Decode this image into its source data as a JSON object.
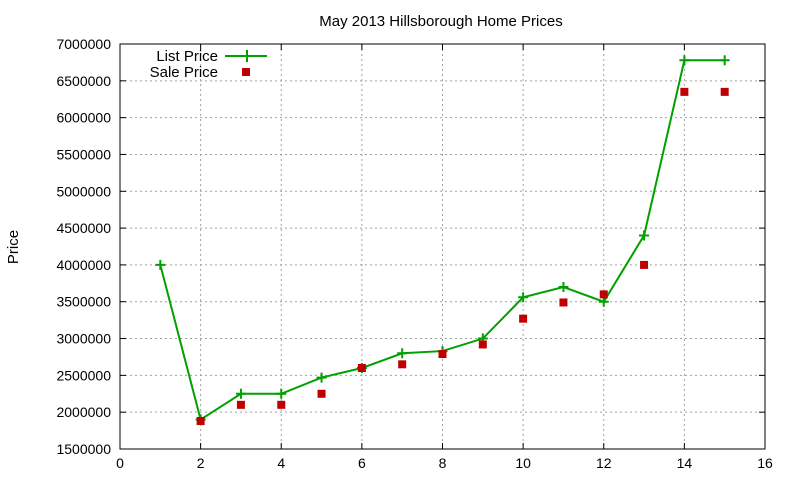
{
  "chart_data": {
    "type": "line",
    "title": "May 2013 Hillsborough Home Prices",
    "xlabel": "",
    "ylabel": "Price",
    "xlim": [
      0,
      16
    ],
    "ylim": [
      1500000,
      7000000
    ],
    "x_ticks": [
      0,
      2,
      4,
      6,
      8,
      10,
      12,
      14,
      16
    ],
    "y_ticks": [
      1500000,
      2000000,
      2500000,
      3000000,
      3500000,
      4000000,
      4500000,
      5000000,
      5500000,
      6000000,
      6500000,
      7000000
    ],
    "grid": true,
    "legend_position": "top-left",
    "series": [
      {
        "name": "List Price",
        "style": "line-with-plus-markers",
        "color": "#00a000",
        "x": [
          1,
          2,
          3,
          4,
          5,
          6,
          7,
          8,
          9,
          10,
          11,
          12,
          13,
          14,
          15
        ],
        "y": [
          4000000,
          1900000,
          2250000,
          2250000,
          2470000,
          2600000,
          2800000,
          2830000,
          3000000,
          3560000,
          3700000,
          3500000,
          4400000,
          6780000,
          6780000
        ]
      },
      {
        "name": "Sale Price",
        "style": "square-markers",
        "color": "#c00000",
        "x": [
          2,
          3,
          4,
          5,
          6,
          7,
          8,
          9,
          10,
          11,
          12,
          13,
          14,
          15
        ],
        "y": [
          1880000,
          2100000,
          2100000,
          2250000,
          2600000,
          2650000,
          2790000,
          2920000,
          3270000,
          3490000,
          3600000,
          4000000,
          6350000,
          6350000
        ]
      }
    ]
  }
}
